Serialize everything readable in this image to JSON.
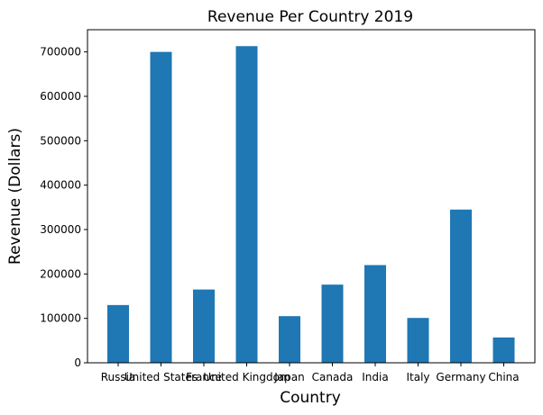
{
  "chart_data": {
    "type": "bar",
    "title": "Revenue Per Country 2019",
    "xlabel": "Country",
    "ylabel": "Revenue (Dollars)",
    "categories": [
      "Russia",
      "United States",
      "France",
      "United Kingdom",
      "Japan",
      "Canada",
      "India",
      "Italy",
      "Germany",
      "China"
    ],
    "values": [
      130000,
      700000,
      165000,
      713000,
      105000,
      176000,
      220000,
      101000,
      345000,
      57000
    ],
    "ylim": [
      0,
      750000
    ],
    "yticks": [
      0,
      100000,
      200000,
      300000,
      400000,
      500000,
      600000,
      700000
    ],
    "grid": false,
    "bar_color": "#1f77b4"
  }
}
